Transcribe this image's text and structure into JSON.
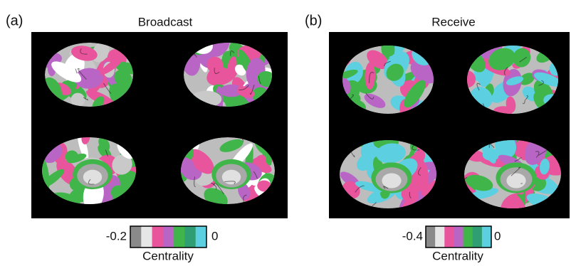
{
  "panels": [
    {
      "label": "(a)",
      "title": "Broadcast",
      "colorbar": {
        "min_label": "-0.2",
        "max_label": "0",
        "title": "Centrality"
      }
    },
    {
      "label": "(b)",
      "title": "Receive",
      "colorbar": {
        "min_label": "-0.4",
        "max_label": "0",
        "title": "Centrality"
      }
    }
  ],
  "colorbar_colors": [
    "#8a8a8a",
    "#e6e6e6",
    "#e8559c",
    "#b865c6",
    "#3fb54a",
    "#2f9e72",
    "#5ccfe0"
  ]
}
